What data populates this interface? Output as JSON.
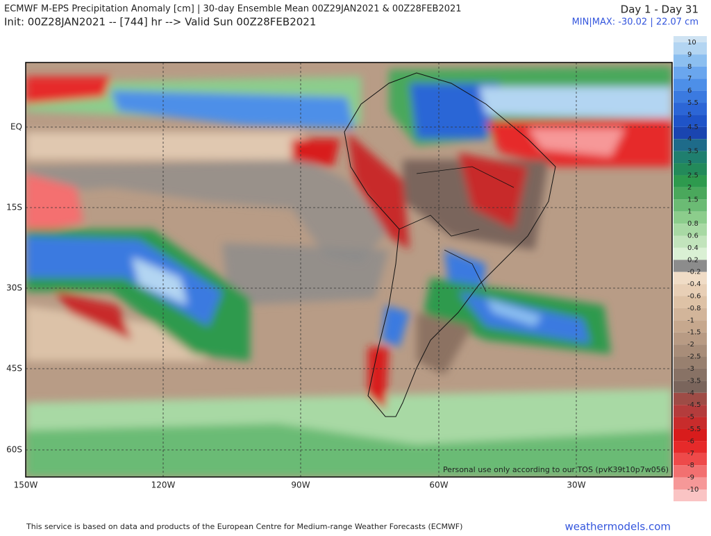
{
  "header": {
    "title": "ECMWF M-EPS Precipitation Anomaly [cm] | 30-day Ensemble Mean 00Z29JAN2021 & 00Z28FEB2021",
    "subtitle": "Init: 00Z28JAN2021 -- [744] hr --> Valid Sun 00Z28FEB2021",
    "period": "Day 1 - Day 31",
    "minmax": "MIN|MAX: -30.02 | 22.07 cm"
  },
  "map": {
    "lon_labels": [
      "150W",
      "120W",
      "90W",
      "60W",
      "30W"
    ],
    "lat_labels": [
      "EQ",
      "15S",
      "30S",
      "45S",
      "60S"
    ],
    "watermark": "Personal use only according to our TOS (pvK39t10p7w056)"
  },
  "legend": {
    "levels": [
      "10",
      "9",
      "8",
      "7",
      "6",
      "5.5",
      "5",
      "4.5",
      "4",
      "3.5",
      "3",
      "2.5",
      "2",
      "1.5",
      "1",
      "0.8",
      "0.6",
      "0.4",
      "0.2",
      "-0.2",
      "-0.4",
      "-0.6",
      "-0.8",
      "-1",
      "-1.5",
      "-2",
      "-2.5",
      "-3",
      "-3.5",
      "-4",
      "-4.5",
      "-5",
      "-5.5",
      "-6",
      "-7",
      "-8",
      "-9",
      "-10"
    ]
  },
  "footer": {
    "credit": "This service is based on data and products of the European Centre for Medium-range Weather Forecasts (ECMWF)",
    "site": "weathermodels.com"
  }
}
